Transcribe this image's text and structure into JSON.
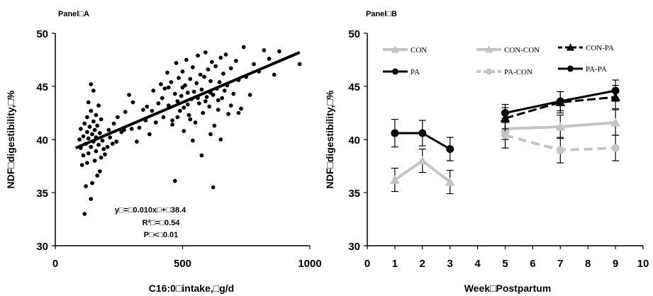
{
  "chart_data": [
    {
      "type": "scatter",
      "panel_label": "Panel□A",
      "xlabel": "C16:0□intake,□g/d",
      "ylabel": "NDF□digestibility,□%",
      "xlim": [
        0,
        1000
      ],
      "ylim": [
        30,
        50
      ],
      "xticks": [
        0,
        500,
        1000
      ],
      "yticks": [
        30,
        35,
        40,
        45,
        50
      ],
      "grid": false,
      "points": [
        [
          115,
          33.0
        ],
        [
          140,
          34.4
        ],
        [
          120,
          35.6
        ],
        [
          145,
          35.9
        ],
        [
          165,
          36.6
        ],
        [
          175,
          37.0
        ],
        [
          105,
          37.6
        ],
        [
          125,
          37.8
        ],
        [
          155,
          38.0
        ],
        [
          180,
          38.3
        ],
        [
          110,
          38.5
        ],
        [
          130,
          38.7
        ],
        [
          160,
          38.9
        ],
        [
          190,
          39.1
        ],
        [
          100,
          39.2
        ],
        [
          140,
          39.3
        ],
        [
          170,
          39.5
        ],
        [
          120,
          39.6
        ],
        [
          150,
          39.8
        ],
        [
          185,
          39.9
        ],
        [
          95,
          40.0
        ],
        [
          130,
          40.1
        ],
        [
          160,
          40.2
        ],
        [
          110,
          40.3
        ],
        [
          145,
          40.5
        ],
        [
          175,
          40.6
        ],
        [
          125,
          40.7
        ],
        [
          155,
          40.9
        ],
        [
          100,
          41.0
        ],
        [
          135,
          41.2
        ],
        [
          165,
          41.3
        ],
        [
          115,
          41.5
        ],
        [
          150,
          41.7
        ],
        [
          180,
          41.9
        ],
        [
          125,
          42.1
        ],
        [
          160,
          42.3
        ],
        [
          140,
          42.7
        ],
        [
          170,
          43.2
        ],
        [
          130,
          43.5
        ],
        [
          150,
          44.6
        ],
        [
          140,
          45.2
        ],
        [
          195,
          38.6
        ],
        [
          205,
          39.3
        ],
        [
          215,
          40.2
        ],
        [
          230,
          41.5
        ],
        [
          245,
          42.1
        ],
        [
          260,
          40.7
        ],
        [
          275,
          42.6
        ],
        [
          290,
          44.2
        ],
        [
          305,
          43.5
        ],
        [
          320,
          39.8
        ],
        [
          330,
          41.1
        ],
        [
          345,
          42.8
        ],
        [
          360,
          43.1
        ],
        [
          370,
          40.5
        ],
        [
          385,
          44.6
        ],
        [
          395,
          41.6
        ],
        [
          405,
          43.4
        ],
        [
          415,
          45.2
        ],
        [
          425,
          42.1
        ],
        [
          430,
          44.8
        ],
        [
          440,
          46.3
        ],
        [
          445,
          43.2
        ],
        [
          455,
          45.4
        ],
        [
          460,
          41.8
        ],
        [
          470,
          44.3
        ],
        [
          475,
          47.2
        ],
        [
          480,
          43.6
        ],
        [
          485,
          45.8
        ],
        [
          490,
          42.7
        ],
        [
          495,
          44.1
        ],
        [
          500,
          46.4
        ],
        [
          505,
          43.0
        ],
        [
          510,
          45.1
        ],
        [
          515,
          47.5
        ],
        [
          520,
          44.4
        ],
        [
          525,
          42.3
        ],
        [
          530,
          45.7
        ],
        [
          535,
          43.8
        ],
        [
          540,
          46.8
        ],
        [
          545,
          44.5
        ],
        [
          550,
          41.6
        ],
        [
          555,
          45.3
        ],
        [
          560,
          47.9
        ],
        [
          565,
          43.4
        ],
        [
          570,
          46.1
        ],
        [
          575,
          44.7
        ],
        [
          580,
          42.5
        ],
        [
          585,
          45.9
        ],
        [
          590,
          48.2
        ],
        [
          595,
          44.0
        ],
        [
          600,
          46.6
        ],
        [
          605,
          43.1
        ],
        [
          610,
          45.5
        ],
        [
          615,
          47.3
        ],
        [
          620,
          44.2
        ],
        [
          625,
          41.3
        ],
        [
          630,
          46.9
        ],
        [
          635,
          44.8
        ],
        [
          640,
          42.8
        ],
        [
          645,
          45.4
        ],
        [
          650,
          47.7
        ],
        [
          655,
          43.9
        ],
        [
          660,
          46.2
        ],
        [
          665,
          44.6
        ],
        [
          670,
          48.0
        ],
        [
          675,
          45.1
        ],
        [
          680,
          42.4
        ],
        [
          690,
          46.7
        ],
        [
          700,
          44.3
        ],
        [
          710,
          47.4
        ],
        [
          720,
          45.6
        ],
        [
          730,
          42.9
        ],
        [
          740,
          48.7
        ],
        [
          750,
          45.9
        ],
        [
          765,
          44.2
        ],
        [
          780,
          47.1
        ],
        [
          800,
          46.4
        ],
        [
          820,
          48.4
        ],
        [
          840,
          47.6
        ],
        [
          860,
          46.1
        ],
        [
          880,
          48.3
        ],
        [
          960,
          47.1
        ],
        [
          470,
          36.1
        ],
        [
          620,
          35.5
        ],
        [
          575,
          38.5
        ],
        [
          540,
          39.9
        ],
        [
          505,
          40.8
        ],
        [
          460,
          41.4
        ],
        [
          530,
          41.9
        ],
        [
          610,
          40.5
        ],
        [
          650,
          40.0
        ],
        [
          590,
          43.6
        ],
        [
          500,
          44.9
        ],
        [
          560,
          43.9
        ],
        [
          610,
          44.4
        ],
        [
          640,
          43.7
        ],
        [
          690,
          43.2
        ],
        [
          720,
          42.5
        ],
        [
          520,
          43.3
        ],
        [
          480,
          42.1
        ],
        [
          445,
          44.9
        ],
        [
          420,
          43.9
        ],
        [
          380,
          42.7
        ],
        [
          355,
          41.8
        ],
        [
          300,
          41.0
        ],
        [
          270,
          40.9
        ],
        [
          240,
          39.8
        ],
        [
          225,
          39.6
        ],
        [
          210,
          40.9
        ]
      ],
      "trendline": {
        "x": [
          80,
          960
        ],
        "y": [
          39.2,
          48.2
        ]
      },
      "annotations": [
        "y□=□0.010x□+□38.4",
        "R²□=□0.54",
        "P□<□0.01"
      ]
    },
    {
      "type": "line",
      "panel_label": "Panel□B",
      "xlabel": "Week□Postpartum",
      "ylabel": "NDF□digestibility,□%",
      "xlim": [
        0,
        10
      ],
      "ylim": [
        30,
        50
      ],
      "xticks": [
        0,
        1,
        2,
        3,
        4,
        5,
        6,
        7,
        8,
        9,
        10
      ],
      "yticks": [
        30,
        35,
        40,
        45,
        50
      ],
      "grid": false,
      "legend": {
        "position": "top",
        "labels": [
          "CON",
          "CON-CON",
          "CON-PA",
          "PA",
          "PA-CON",
          "PA-PA"
        ]
      },
      "series": [
        {
          "name": "CON",
          "x": [
            1,
            2,
            3
          ],
          "y": [
            36.2,
            38.0,
            36.0
          ],
          "err": [
            1.1,
            1.1,
            1.1
          ]
        },
        {
          "name": "PA",
          "x": [
            1,
            2,
            3
          ],
          "y": [
            40.6,
            40.6,
            39.1
          ],
          "err": [
            1.3,
            1.2,
            1.1
          ]
        },
        {
          "name": "CON-CON",
          "x": [
            5,
            7,
            9
          ],
          "y": [
            41.0,
            41.2,
            41.6
          ],
          "err": [
            1.0,
            1.1,
            1.2
          ]
        },
        {
          "name": "PA-CON",
          "x": [
            5,
            7,
            9
          ],
          "y": [
            40.4,
            39.0,
            39.2
          ],
          "err": [
            1.2,
            1.2,
            1.2
          ]
        },
        {
          "name": "CON-PA",
          "x": [
            5,
            7,
            9
          ],
          "y": [
            42.0,
            43.5,
            44.0
          ],
          "err": [
            1.0,
            1.0,
            1.1
          ]
        },
        {
          "name": "PA-PA",
          "x": [
            5,
            7,
            9
          ],
          "y": [
            42.5,
            43.6,
            44.6
          ],
          "err": [
            0.8,
            0.9,
            1.0
          ]
        }
      ]
    }
  ]
}
